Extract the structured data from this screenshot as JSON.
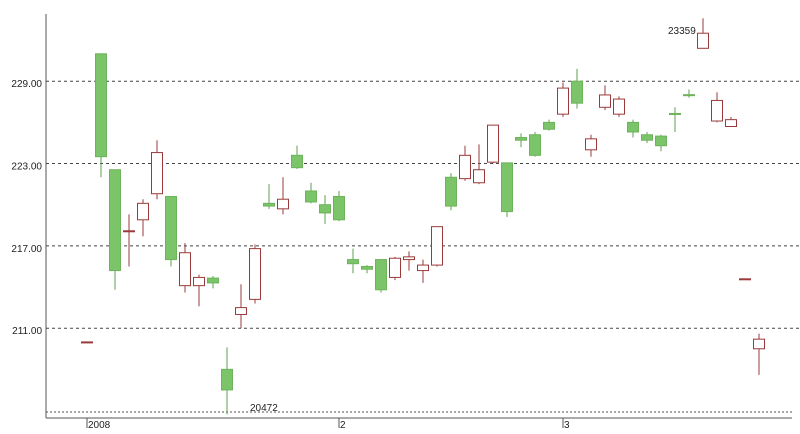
{
  "chart_data": {
    "type": "candlestick",
    "xticks": [
      {
        "value": 0,
        "label": "2008"
      },
      {
        "value": 18,
        "label": "2"
      },
      {
        "value": 34,
        "label": "3"
      }
    ],
    "ylim": [
      204.6,
      233.9
    ],
    "yticks": [
      {
        "value": 211,
        "label": "211.00"
      },
      {
        "value": 217,
        "label": "217.00"
      },
      {
        "value": 223,
        "label": "223.00"
      },
      {
        "value": 229,
        "label": "229.00"
      }
    ],
    "grid": true,
    "up_color": "#9b3a3a",
    "down_color": "#7cc46a",
    "series": [
      {
        "open": [
          210.0,
          231.0,
          222.55,
          218.1,
          218.9,
          220.8,
          220.6,
          214.1,
          214.1,
          214.65,
          208.0,
          212.0,
          213.1,
          220.1,
          219.7,
          223.6,
          221.0,
          220.0,
          220.6,
          216.0,
          215.5,
          216.0,
          214.7,
          216.0,
          215.2,
          215.6,
          222.0,
          221.9,
          221.6,
          223.1,
          223.05,
          224.9,
          225.1,
          226.0,
          226.6,
          229.0,
          224.0,
          227.1,
          226.6,
          226.0,
          225.1,
          225.0,
          226.65,
          228.02,
          231.4,
          226.1,
          225.7,
          214.6,
          209.5
        ],
        "high": [
          210.0,
          231.0,
          222.55,
          219.3,
          220.4,
          224.7,
          220.6,
          217.2,
          214.9,
          214.8,
          209.6,
          214.2,
          217.1,
          221.5,
          222.0,
          224.3,
          221.6,
          220.7,
          221.0,
          216.8,
          215.6,
          216.0,
          216.2,
          216.6,
          216.0,
          218.4,
          222.3,
          224.3,
          224.4,
          225.8,
          223.05,
          225.2,
          225.3,
          226.2,
          228.9,
          229.9,
          225.1,
          228.7,
          227.9,
          226.2,
          225.3,
          225.1,
          227.1,
          228.4,
          233.59,
          228.2,
          226.4,
          214.6,
          210.6
        ],
        "low": [
          210.0,
          222.0,
          213.8,
          215.5,
          217.7,
          220.4,
          215.5,
          213.6,
          212.6,
          213.9,
          204.72,
          211.0,
          212.8,
          219.7,
          219.3,
          222.6,
          220.1,
          218.6,
          218.8,
          215.0,
          215.0,
          213.6,
          214.5,
          215.2,
          214.3,
          215.5,
          219.6,
          221.75,
          221.5,
          223.0,
          219.1,
          224.2,
          223.5,
          225.4,
          226.4,
          227.0,
          223.5,
          226.9,
          226.4,
          224.9,
          224.5,
          223.9,
          225.3,
          227.8,
          231.4,
          226.0,
          225.7,
          214.6,
          207.6
        ],
        "close": [
          210.0,
          223.5,
          215.2,
          218.1,
          220.1,
          223.8,
          216.0,
          216.5,
          214.7,
          214.3,
          206.5,
          212.5,
          216.8,
          219.9,
          220.4,
          222.7,
          220.2,
          219.4,
          218.9,
          215.7,
          215.3,
          213.8,
          216.1,
          216.2,
          215.6,
          218.4,
          219.9,
          223.6,
          222.55,
          225.8,
          219.5,
          224.7,
          223.6,
          225.5,
          228.5,
          227.4,
          224.8,
          228.0,
          227.7,
          225.3,
          224.7,
          224.3,
          226.6,
          228.0,
          232.5,
          227.6,
          226.2,
          214.6,
          210.2
        ]
      }
    ],
    "annotations": [
      {
        "text": "23359"
      },
      {
        "text": "20472"
      }
    ]
  }
}
